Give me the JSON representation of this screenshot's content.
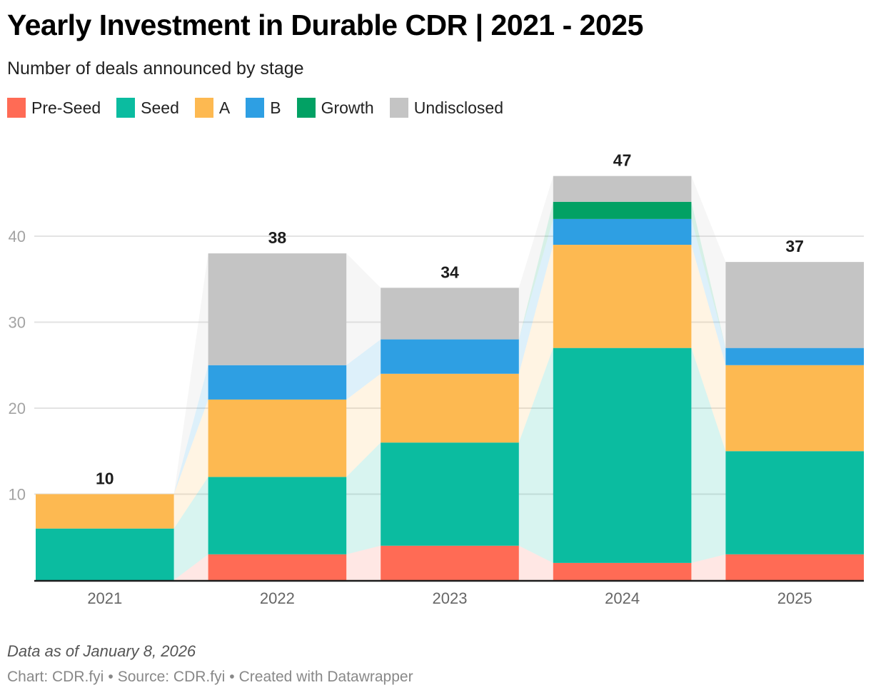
{
  "header": {
    "title": "Yearly Investment in Durable CDR | 2021 - 2025",
    "subtitle": "Number of deals announced by stage"
  },
  "footer": {
    "note": "Data as of January 8, 2026",
    "chart_credit": "Chart: CDR.fyi",
    "source_credit": "Source: CDR.fyi",
    "tool_credit": "Created with Datawrapper",
    "separator": "•"
  },
  "chart_data": {
    "type": "bar",
    "stacked": true,
    "title": "Yearly Investment in Durable CDR | 2021 - 2025",
    "subtitle": "Number of deals announced by stage",
    "xlabel": "",
    "ylabel": "",
    "categories": [
      "2021",
      "2022",
      "2023",
      "2024",
      "2025"
    ],
    "series": [
      {
        "name": "Pre-Seed",
        "color": "#ff6b55",
        "values": [
          0,
          3,
          4,
          2,
          3
        ]
      },
      {
        "name": "Seed",
        "color": "#0bbca0",
        "values": [
          6,
          9,
          12,
          25,
          12
        ]
      },
      {
        "name": "A",
        "color": "#fdb951",
        "values": [
          4,
          9,
          8,
          12,
          10
        ]
      },
      {
        "name": "B",
        "color": "#2e9fe3",
        "values": [
          0,
          4,
          4,
          3,
          2
        ]
      },
      {
        "name": "Growth",
        "color": "#02a164",
        "values": [
          0,
          0,
          0,
          2,
          0
        ]
      },
      {
        "name": "Undisclosed",
        "color": "#c4c4c4",
        "values": [
          0,
          13,
          6,
          3,
          10
        ]
      }
    ],
    "totals": [
      10,
      38,
      34,
      47,
      37
    ],
    "ylim": [
      0,
      48
    ],
    "yticks": [
      10,
      20,
      30,
      40
    ],
    "grid": true,
    "legend_position": "top-left",
    "connector_bands": true
  }
}
